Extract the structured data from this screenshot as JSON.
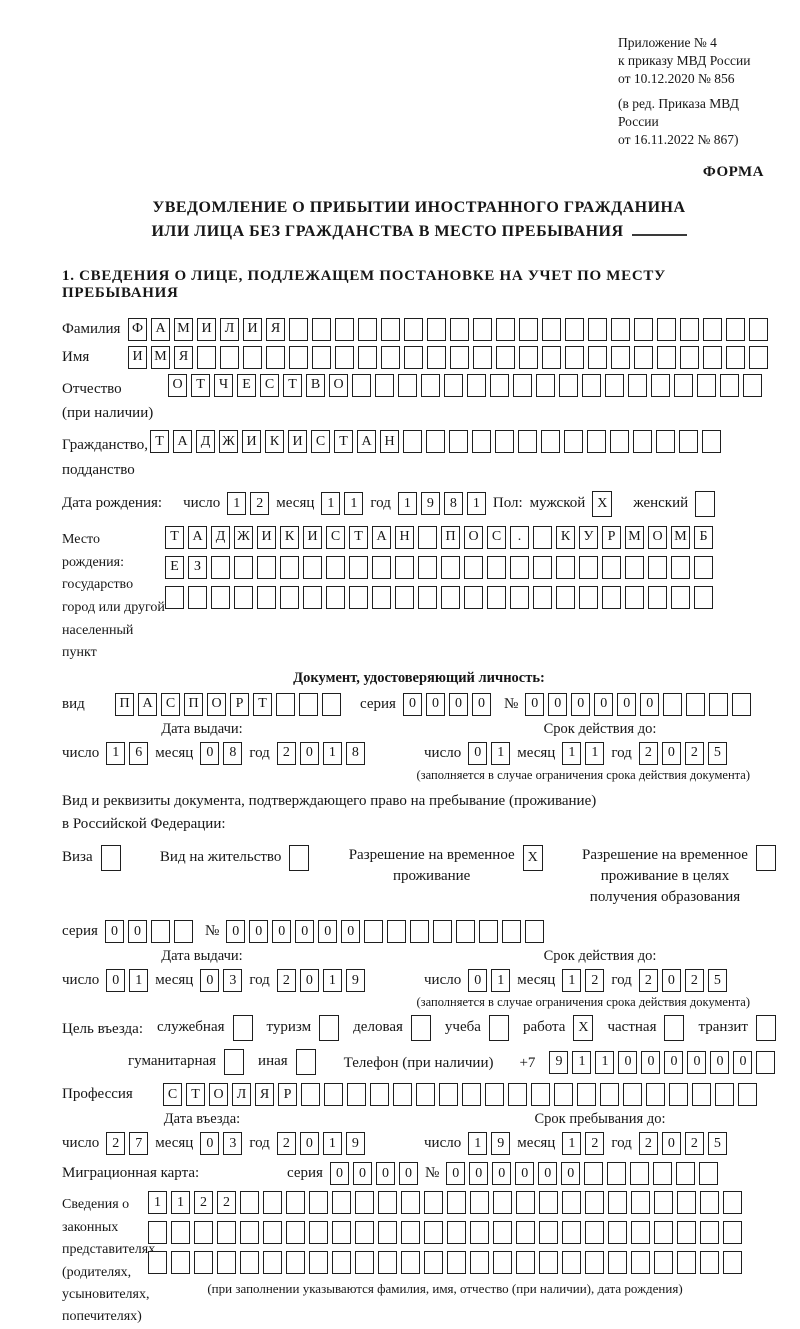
{
  "header": {
    "appendix": [
      "Приложение № 4",
      "к приказу МВД России",
      "от 10.12.2020 № 856"
    ],
    "edition": [
      "(в ред. Приказа МВД России",
      "от 16.11.2022 № 867)"
    ],
    "form_label": "ФОРМА"
  },
  "title": {
    "line1": "УВЕДОМЛЕНИЕ О ПРИБЫТИИ ИНОСТРАННОГО ГРАЖДАНИНА",
    "line2": "ИЛИ ЛИЦА БЕЗ ГРАЖДАНСТВА В МЕСТО ПРЕБЫВАНИЯ"
  },
  "section1_heading": "1. СВЕДЕНИЯ О ЛИЦЕ, ПОДЛЕЖАЩЕМ ПОСТАНОВКЕ НА УЧЕТ ПО МЕСТУ ПРЕБЫВАНИЯ",
  "labels": {
    "surname": "Фамилия",
    "name": "Имя",
    "patronymic1": "Отчество",
    "patronymic2": "(при наличии)",
    "citizenship1": "Гражданство,",
    "citizenship2": "подданство",
    "birth_date": "Дата рождения:",
    "day": "число",
    "month": "месяц",
    "year": "год",
    "sex": "Пол:",
    "male": "мужской",
    "female": "женский",
    "birth_place1": "Место рождения:",
    "birth_place2": "государство",
    "birth_place3": "город или другой",
    "birth_place4": "населенный пункт",
    "identity_heading": "Документ, удостоверяющий личность:",
    "doc_type": "вид",
    "series": "серия",
    "number": "№",
    "issue_date": "Дата выдачи:",
    "valid_until": "Срок действия до:",
    "valid_note": "(заполняется в случае ограничения срока действия документа)",
    "residence_intro1": "Вид и реквизиты документа, подтверждающего право на пребывание (проживание)",
    "residence_intro2": "в Российской Федерации:",
    "visa": "Виза",
    "residence_permit": "Вид на жительство",
    "temp_permit1": "Разрешение на временное",
    "temp_permit2": "проживание",
    "edu_permit1": "Разрешение на временное",
    "edu_permit2": "проживание в целях",
    "edu_permit3": "получения образования",
    "purpose": "Цель въезда:",
    "purpose_official": "служебная",
    "purpose_tourism": "туризм",
    "purpose_business": "деловая",
    "purpose_study": "учеба",
    "purpose_work": "работа",
    "purpose_private": "частная",
    "purpose_transit": "транзит",
    "purpose_humanitarian": "гуманитарная",
    "purpose_other": "иная",
    "phone": "Телефон (при наличии)",
    "phone_prefix": "+7",
    "profession": "Профессия",
    "entry_date": "Дата въезда:",
    "stay_until": "Срок пребывания до:",
    "migration_card": "Миграционная карта:",
    "reps1": "Сведения о",
    "reps2": "законных",
    "reps3": "представителях",
    "reps4": "(родителях,",
    "reps5": "усыновителях,",
    "reps6": "попечителях)",
    "reps_note": "(при заполнении указываются фамилия, имя, отчество (при наличии), дата рождения)"
  },
  "values": {
    "surname": {
      "text": "ФАМИЛИЯ",
      "total": 28
    },
    "name": {
      "text": "ИМЯ",
      "total": 28
    },
    "patronymic": {
      "text": "ОТЧЕСТВО",
      "total": 26
    },
    "citizenship": {
      "text": "ТАДЖИКИСТАН",
      "total": 25
    },
    "birth_day": {
      "text": "12",
      "total": 2
    },
    "birth_month": {
      "text": "11",
      "total": 2
    },
    "birth_year": {
      "text": "1981",
      "total": 4
    },
    "sex_male": {
      "text": "X",
      "total": 1
    },
    "sex_female": {
      "text": "",
      "total": 1
    },
    "birth_place_row1": {
      "text": "ТАДЖИКИСТАН ПОС. КУРМОМБ",
      "total": 24
    },
    "birth_place_row2": {
      "text": "ЕЗ",
      "total": 24
    },
    "birth_place_row3": {
      "text": "",
      "total": 24
    },
    "doc_type": {
      "text": "ПАСПОРТ",
      "total": 10
    },
    "doc_series": {
      "text": "0000",
      "total": 4
    },
    "doc_number": {
      "text": "000000",
      "total": 10
    },
    "doc_issue_day": {
      "text": "16",
      "total": 2
    },
    "doc_issue_month": {
      "text": "08",
      "total": 2
    },
    "doc_issue_year": {
      "text": "2018",
      "total": 4
    },
    "doc_valid_day": {
      "text": "01",
      "total": 2
    },
    "doc_valid_month": {
      "text": "11",
      "total": 2
    },
    "doc_valid_year": {
      "text": "2025",
      "total": 4
    },
    "visa_cb": {
      "text": "",
      "total": 1
    },
    "residence_permit_cb": {
      "text": "",
      "total": 1
    },
    "temp_permit_cb": {
      "text": "X",
      "total": 1
    },
    "edu_permit_cb": {
      "text": "",
      "total": 1
    },
    "res_series": {
      "text": "00",
      "total": 4
    },
    "res_number": {
      "text": "000000",
      "total": 14
    },
    "res_issue_day": {
      "text": "01",
      "total": 2
    },
    "res_issue_month": {
      "text": "03",
      "total": 2
    },
    "res_issue_year": {
      "text": "2019",
      "total": 4
    },
    "res_valid_day": {
      "text": "01",
      "total": 2
    },
    "res_valid_month": {
      "text": "12",
      "total": 2
    },
    "res_valid_year": {
      "text": "2025",
      "total": 4
    },
    "purpose_official_cb": {
      "text": "",
      "total": 1
    },
    "purpose_tourism_cb": {
      "text": "",
      "total": 1
    },
    "purpose_business_cb": {
      "text": "",
      "total": 1
    },
    "purpose_study_cb": {
      "text": "",
      "total": 1
    },
    "purpose_work_cb": {
      "text": "X",
      "total": 1
    },
    "purpose_private_cb": {
      "text": "",
      "total": 1
    },
    "purpose_transit_cb": {
      "text": "",
      "total": 1
    },
    "purpose_humanitarian_cb": {
      "text": "",
      "total": 1
    },
    "purpose_other_cb": {
      "text": "",
      "total": 1
    },
    "phone": {
      "text": "911000000",
      "total": 10
    },
    "profession": {
      "text": "СТОЛЯР",
      "total": 26
    },
    "entry_day": {
      "text": "27",
      "total": 2
    },
    "entry_month": {
      "text": "03",
      "total": 2
    },
    "entry_year": {
      "text": "2019",
      "total": 4
    },
    "stay_day": {
      "text": "19",
      "total": 2
    },
    "stay_month": {
      "text": "12",
      "total": 2
    },
    "stay_year": {
      "text": "2025",
      "total": 4
    },
    "mig_series": {
      "text": "0000",
      "total": 4
    },
    "mig_number": {
      "text": "000000",
      "total": 12
    },
    "reps_row1": {
      "text": "1122",
      "total": 26
    },
    "reps_row2": {
      "text": "",
      "total": 26
    },
    "reps_row3": {
      "text": "",
      "total": 26
    }
  }
}
